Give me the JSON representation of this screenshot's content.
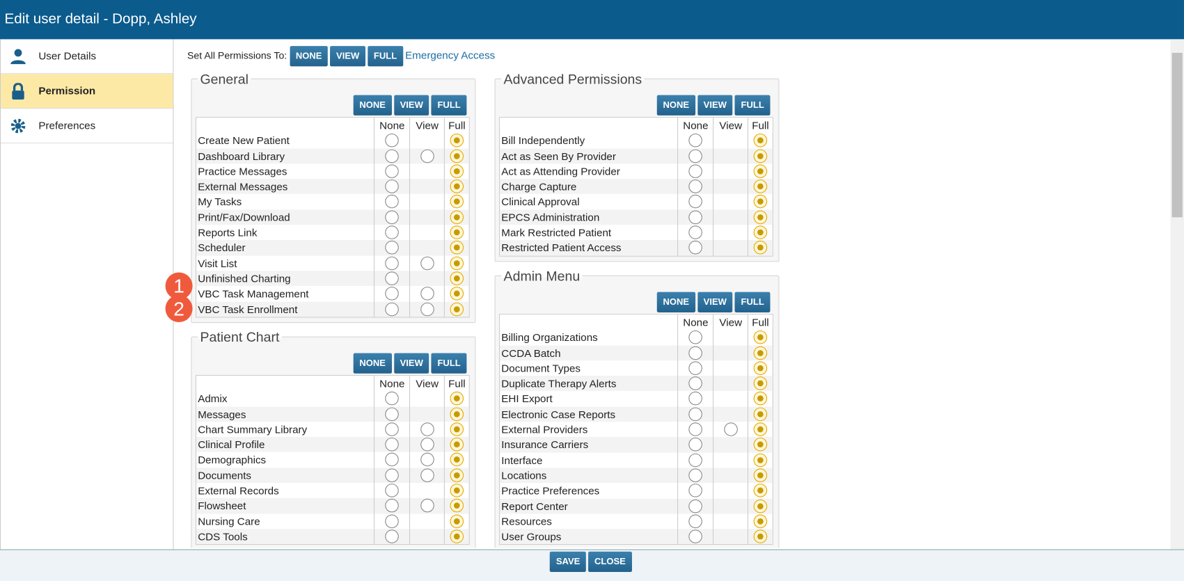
{
  "header": {
    "title": "Edit user detail - Dopp, Ashley"
  },
  "sidebar": {
    "items": [
      "User Details",
      "Permission",
      "Preferences"
    ]
  },
  "set_all": {
    "label": "Set All Permissions To:",
    "buttons": [
      "NONE",
      "VIEW",
      "FULL"
    ],
    "link": "Emergency Access"
  },
  "panels": [
    {
      "title": "General",
      "buttons": [
        "NONE",
        "VIEW",
        "FULL"
      ],
      "columns": [
        "None",
        "View",
        "Full"
      ],
      "rows": [
        {
          "label": "Create New Patient",
          "view": false
        },
        {
          "label": "Dashboard Library",
          "view": true
        },
        {
          "label": "Practice Messages",
          "view": false
        },
        {
          "label": "External Messages",
          "view": false
        },
        {
          "label": "My Tasks",
          "view": false
        },
        {
          "label": "Print/Fax/Download",
          "view": false
        },
        {
          "label": "Reports Link",
          "view": false
        },
        {
          "label": "Scheduler",
          "view": false
        },
        {
          "label": "Visit List",
          "view": true
        },
        {
          "label": "Unfinished Charting",
          "view": false
        },
        {
          "label": "VBC Task Management",
          "view": true
        },
        {
          "label": "VBC Task Enrollment",
          "view": true
        }
      ]
    },
    {
      "title": "Patient Chart",
      "buttons": [
        "NONE",
        "VIEW",
        "FULL"
      ],
      "columns": [
        "None",
        "View",
        "Full"
      ],
      "rows": [
        {
          "label": "Admix",
          "view": false
        },
        {
          "label": "Messages",
          "view": false
        },
        {
          "label": "Chart Summary Library",
          "view": true
        },
        {
          "label": "Clinical Profile",
          "view": true
        },
        {
          "label": "Demographics",
          "view": true
        },
        {
          "label": "Documents",
          "view": true
        },
        {
          "label": "External Records",
          "view": false
        },
        {
          "label": "Flowsheet",
          "view": true
        },
        {
          "label": "Nursing Care",
          "view": false
        },
        {
          "label": "CDS Tools",
          "view": false
        }
      ]
    },
    {
      "title": "Advanced Permissions",
      "buttons": [
        "NONE",
        "VIEW",
        "FULL"
      ],
      "columns": [
        "None",
        "View",
        "Full"
      ],
      "rows": [
        {
          "label": "Bill Independently",
          "view": false
        },
        {
          "label": "Act as Seen By Provider",
          "view": false
        },
        {
          "label": "Act as Attending Provider",
          "view": false
        },
        {
          "label": "Charge Capture",
          "view": false
        },
        {
          "label": "Clinical Approval",
          "view": false
        },
        {
          "label": "EPCS Administration",
          "view": false
        },
        {
          "label": "Mark Restricted Patient",
          "view": false
        },
        {
          "label": "Restricted Patient Access",
          "view": false
        }
      ]
    },
    {
      "title": "Admin Menu",
      "buttons": [
        "NONE",
        "VIEW",
        "FULL"
      ],
      "columns": [
        "None",
        "View",
        "Full"
      ],
      "rows": [
        {
          "label": "Billing Organizations",
          "view": false
        },
        {
          "label": "CCDA Batch",
          "view": false
        },
        {
          "label": "Document Types",
          "view": false
        },
        {
          "label": "Duplicate Therapy Alerts",
          "view": false
        },
        {
          "label": "EHI Export",
          "view": false
        },
        {
          "label": "Electronic Case Reports",
          "view": false
        },
        {
          "label": "External Providers",
          "view": true
        },
        {
          "label": "Insurance Carriers",
          "view": false
        },
        {
          "label": "Interface",
          "view": false
        },
        {
          "label": "Locations",
          "view": false
        },
        {
          "label": "Practice Preferences",
          "view": false
        },
        {
          "label": "Report Center",
          "view": false
        },
        {
          "label": "Resources",
          "view": false
        },
        {
          "label": "User Groups",
          "view": false
        }
      ]
    }
  ],
  "annotations": [
    "1",
    "2"
  ],
  "footer": {
    "buttons": [
      "SAVE",
      "CLOSE"
    ]
  }
}
